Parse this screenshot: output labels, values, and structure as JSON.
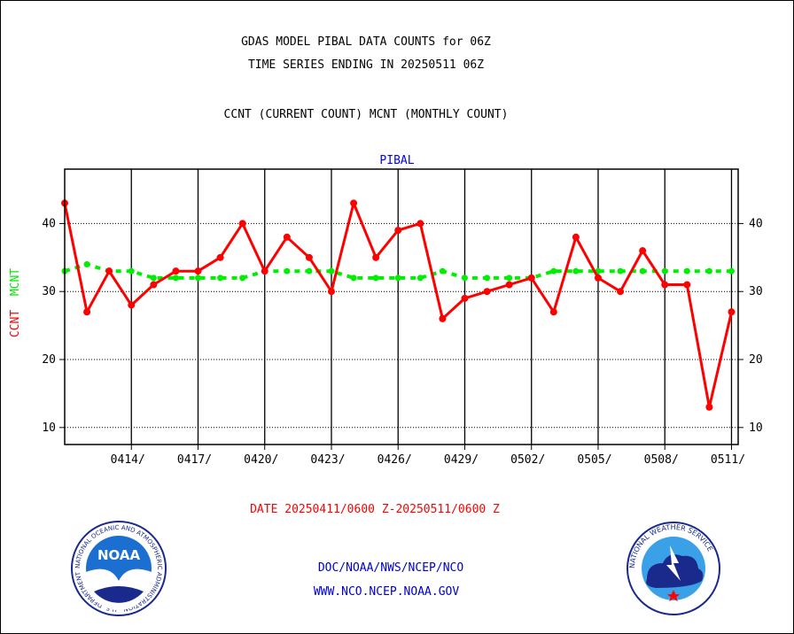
{
  "header": {
    "title_line1": "GDAS MODEL PIBAL DATA COUNTS for 06Z",
    "title_line2": "TIME SERIES ENDING IN 20250511 06Z",
    "subtitle": "CCNT (CURRENT COUNT) MCNT (MONTHLY COUNT)"
  },
  "footer": {
    "date_range": "DATE 20250411/0600 Z-20250511/0600 Z",
    "org_line1": "DOC/NOAA/NWS/NCEP/NCO",
    "org_line2": "WWW.NCO.NCEP.NOAA.GOV"
  },
  "logos": {
    "left_text": "NOAA",
    "left_ring_text": "NATIONAL OCEANIC AND ATMOSPHERIC ADMINISTRATION · U.S. DEPARTMENT OF COMMERCE ·",
    "right_ring_text": "NATIONAL WEATHER SERVICE"
  },
  "colors": {
    "ccnt": "#ff0000",
    "mcnt": "#00ee00",
    "panel_label": "#0000ff",
    "footer_text": "#0000cc",
    "date_text": "#ff0000"
  },
  "chart_data": {
    "type": "line",
    "panel_label": "PIBAL",
    "ylabel_ccnt": "CCNT",
    "ylabel_mcnt": "MCNT",
    "ylim": [
      7.5,
      48
    ],
    "yticks": [
      10,
      20,
      30,
      40
    ],
    "xlim": [
      0,
      30.3
    ],
    "xticks": [
      {
        "label": "0414/",
        "x": 3
      },
      {
        "label": "0417/",
        "x": 6
      },
      {
        "label": "0420/",
        "x": 9
      },
      {
        "label": "0423/",
        "x": 12
      },
      {
        "label": "0426/",
        "x": 15
      },
      {
        "label": "0429/",
        "x": 18
      },
      {
        "label": "0502/",
        "x": 21
      },
      {
        "label": "0505/",
        "x": 24
      },
      {
        "label": "0508/",
        "x": 27
      },
      {
        "label": "0511/",
        "x": 30
      }
    ],
    "grid": true,
    "series": [
      {
        "name": "CCNT",
        "color": "#ff0000",
        "style": "solid",
        "values": [
          43,
          27,
          33,
          28,
          31,
          33,
          33,
          35,
          40,
          33,
          38,
          35,
          30,
          43,
          35,
          39,
          40,
          26,
          29,
          30,
          31,
          32,
          27,
          38,
          32,
          30,
          36,
          31,
          31,
          13,
          27
        ]
      },
      {
        "name": "MCNT",
        "color": "#00ee00",
        "style": "dashed",
        "values": [
          33,
          34,
          33,
          33,
          32,
          32,
          32,
          32,
          32,
          33,
          33,
          33,
          33,
          32,
          32,
          32,
          32,
          33,
          32,
          32,
          32,
          32,
          33,
          33,
          33,
          33,
          33,
          33,
          33,
          33,
          33
        ]
      }
    ]
  }
}
